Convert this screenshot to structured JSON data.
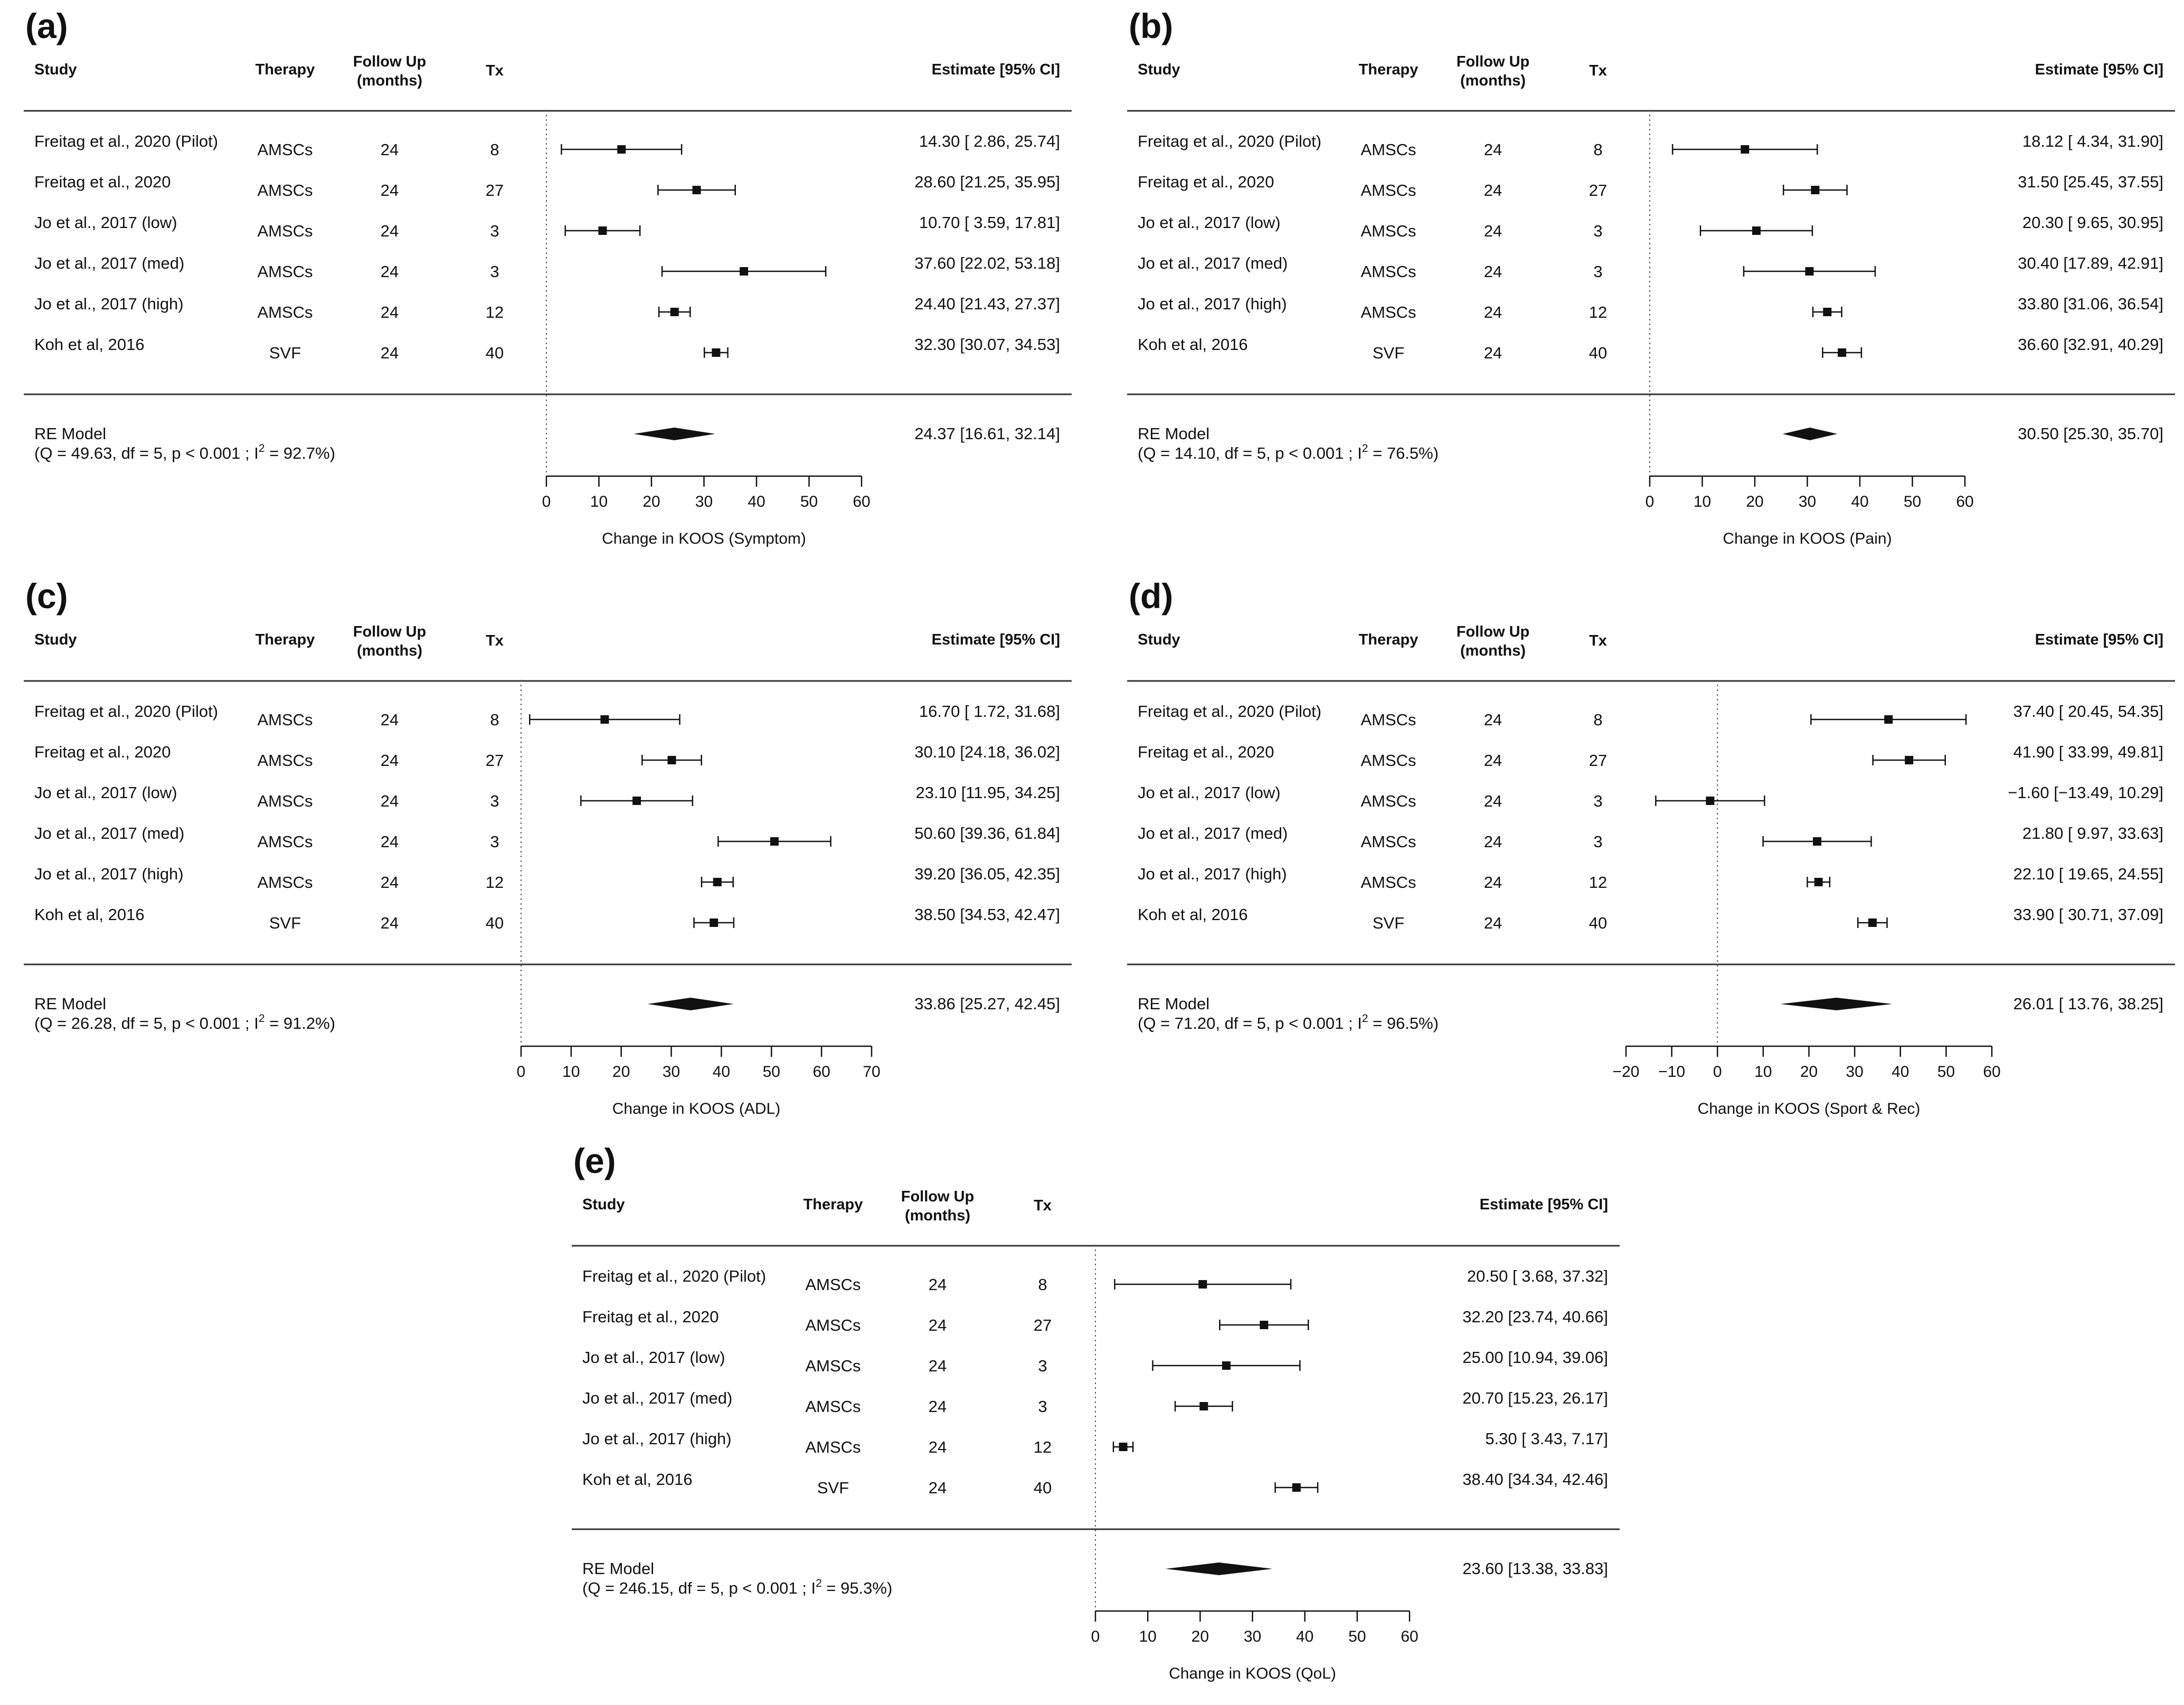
{
  "figure": {
    "headers": {
      "study": "Study",
      "therapy": "Therapy",
      "follow_up_1": "Follow Up",
      "follow_up_2": "(months)",
      "tx": "Tx",
      "estimate": "Estimate [95% CI]"
    },
    "colors": {
      "ink": "#111111",
      "rule": "#333333",
      "background": "#ffffff"
    }
  },
  "chart_data": [
    {
      "type": "forest",
      "label": "(a)",
      "xlabel": "Change in KOOS (Symptom)",
      "xlim": [
        0,
        60
      ],
      "ticks": [
        0,
        10,
        20,
        30,
        40,
        50,
        60
      ],
      "tick_labels": [
        "0",
        "10",
        "20",
        "30",
        "40",
        "50",
        "60"
      ],
      "studies": [
        {
          "name": "Freitag et al., 2020 (Pilot)",
          "therapy": "AMSCs",
          "followup": "24",
          "tx": "8",
          "est": 14.3,
          "lo": 2.86,
          "hi": 25.74,
          "ci_text": "14.30 [ 2.86, 25.74]"
        },
        {
          "name": "Freitag et al., 2020",
          "therapy": "AMSCs",
          "followup": "24",
          "tx": "27",
          "est": 28.6,
          "lo": 21.25,
          "hi": 35.95,
          "ci_text": "28.60 [21.25, 35.95]"
        },
        {
          "name": "Jo et al., 2017 (low)",
          "therapy": "AMSCs",
          "followup": "24",
          "tx": "3",
          "est": 10.7,
          "lo": 3.59,
          "hi": 17.81,
          "ci_text": "10.70 [ 3.59, 17.81]"
        },
        {
          "name": "Jo et al., 2017 (med)",
          "therapy": "AMSCs",
          "followup": "24",
          "tx": "3",
          "est": 37.6,
          "lo": 22.02,
          "hi": 53.18,
          "ci_text": "37.60 [22.02, 53.18]"
        },
        {
          "name": "Jo et al., 2017 (high)",
          "therapy": "AMSCs",
          "followup": "24",
          "tx": "12",
          "est": 24.4,
          "lo": 21.43,
          "hi": 27.37,
          "ci_text": "24.40 [21.43, 27.37]"
        },
        {
          "name": "Koh et al, 2016",
          "therapy": "SVF",
          "followup": "24",
          "tx": "40",
          "est": 32.3,
          "lo": 30.07,
          "hi": 34.53,
          "ci_text": "32.30 [30.07, 34.53]"
        }
      ],
      "model": {
        "name": "RE Model",
        "q_text": "(Q = 49.63, df = 5, p < 0.001 ; I",
        "sup": "2",
        "q_tail": " = 92.7%)",
        "est": 24.37,
        "lo": 16.61,
        "hi": 32.14,
        "ci_text": "24.37 [16.61, 32.14]"
      }
    },
    {
      "type": "forest",
      "label": "(b)",
      "xlabel": "Change in KOOS (Pain)",
      "xlim": [
        0,
        60
      ],
      "ticks": [
        0,
        10,
        20,
        30,
        40,
        50,
        60
      ],
      "tick_labels": [
        "0",
        "10",
        "20",
        "30",
        "40",
        "50",
        "60"
      ],
      "studies": [
        {
          "name": "Freitag et al., 2020 (Pilot)",
          "therapy": "AMSCs",
          "followup": "24",
          "tx": "8",
          "est": 18.12,
          "lo": 4.34,
          "hi": 31.9,
          "ci_text": "18.12 [ 4.34, 31.90]"
        },
        {
          "name": "Freitag et al., 2020",
          "therapy": "AMSCs",
          "followup": "24",
          "tx": "27",
          "est": 31.5,
          "lo": 25.45,
          "hi": 37.55,
          "ci_text": "31.50 [25.45, 37.55]"
        },
        {
          "name": "Jo et al., 2017 (low)",
          "therapy": "AMSCs",
          "followup": "24",
          "tx": "3",
          "est": 20.3,
          "lo": 9.65,
          "hi": 30.95,
          "ci_text": "20.30 [ 9.65, 30.95]"
        },
        {
          "name": "Jo et al., 2017 (med)",
          "therapy": "AMSCs",
          "followup": "24",
          "tx": "3",
          "est": 30.4,
          "lo": 17.89,
          "hi": 42.91,
          "ci_text": "30.40 [17.89, 42.91]"
        },
        {
          "name": "Jo et al., 2017 (high)",
          "therapy": "AMSCs",
          "followup": "24",
          "tx": "12",
          "est": 33.8,
          "lo": 31.06,
          "hi": 36.54,
          "ci_text": "33.80 [31.06, 36.54]"
        },
        {
          "name": "Koh et al, 2016",
          "therapy": "SVF",
          "followup": "24",
          "tx": "40",
          "est": 36.6,
          "lo": 32.91,
          "hi": 40.29,
          "ci_text": "36.60 [32.91, 40.29]"
        }
      ],
      "model": {
        "name": "RE Model",
        "q_text": "(Q = 14.10, df = 5, p < 0.001 ; I",
        "sup": "2",
        "q_tail": " = 76.5%)",
        "est": 30.5,
        "lo": 25.3,
        "hi": 35.7,
        "ci_text": "30.50 [25.30, 35.70]"
      }
    },
    {
      "type": "forest",
      "label": "(c)",
      "xlabel": "Change in KOOS (ADL)",
      "xlim": [
        0,
        70
      ],
      "ticks": [
        0,
        10,
        20,
        30,
        40,
        50,
        60,
        70
      ],
      "tick_labels": [
        "0",
        "10",
        "20",
        "30",
        "40",
        "50",
        "60",
        "70"
      ],
      "studies": [
        {
          "name": "Freitag et al., 2020 (Pilot)",
          "therapy": "AMSCs",
          "followup": "24",
          "tx": "8",
          "est": 16.7,
          "lo": 1.72,
          "hi": 31.68,
          "ci_text": "16.70 [ 1.72, 31.68]"
        },
        {
          "name": "Freitag et al., 2020",
          "therapy": "AMSCs",
          "followup": "24",
          "tx": "27",
          "est": 30.1,
          "lo": 24.18,
          "hi": 36.02,
          "ci_text": "30.10 [24.18, 36.02]"
        },
        {
          "name": "Jo et al., 2017 (low)",
          "therapy": "AMSCs",
          "followup": "24",
          "tx": "3",
          "est": 23.1,
          "lo": 11.95,
          "hi": 34.25,
          "ci_text": "23.10 [11.95, 34.25]"
        },
        {
          "name": "Jo et al., 2017 (med)",
          "therapy": "AMSCs",
          "followup": "24",
          "tx": "3",
          "est": 50.6,
          "lo": 39.36,
          "hi": 61.84,
          "ci_text": "50.60 [39.36, 61.84]"
        },
        {
          "name": "Jo et al., 2017 (high)",
          "therapy": "AMSCs",
          "followup": "24",
          "tx": "12",
          "est": 39.2,
          "lo": 36.05,
          "hi": 42.35,
          "ci_text": "39.20 [36.05, 42.35]"
        },
        {
          "name": "Koh et al, 2016",
          "therapy": "SVF",
          "followup": "24",
          "tx": "40",
          "est": 38.5,
          "lo": 34.53,
          "hi": 42.47,
          "ci_text": "38.50 [34.53, 42.47]"
        }
      ],
      "model": {
        "name": "RE Model",
        "q_text": "(Q = 26.28, df = 5, p < 0.001 ; I",
        "sup": "2",
        "q_tail": " = 91.2%)",
        "est": 33.86,
        "lo": 25.27,
        "hi": 42.45,
        "ci_text": "33.86 [25.27, 42.45]"
      }
    },
    {
      "type": "forest",
      "label": "(d)",
      "xlabel": "Change in KOOS (Sport & Rec)",
      "xlim": [
        -20,
        60
      ],
      "ticks": [
        -20,
        -10,
        0,
        10,
        20,
        30,
        40,
        50,
        60
      ],
      "tick_labels": [
        "−20",
        "−10",
        "0",
        "10",
        "20",
        "30",
        "40",
        "50",
        "60"
      ],
      "studies": [
        {
          "name": "Freitag et al., 2020 (Pilot)",
          "therapy": "AMSCs",
          "followup": "24",
          "tx": "8",
          "est": 37.4,
          "lo": 20.45,
          "hi": 54.35,
          "ci_text": "37.40 [ 20.45, 54.35]"
        },
        {
          "name": "Freitag et al., 2020",
          "therapy": "AMSCs",
          "followup": "24",
          "tx": "27",
          "est": 41.9,
          "lo": 33.99,
          "hi": 49.81,
          "ci_text": "41.90 [ 33.99, 49.81]"
        },
        {
          "name": "Jo et al., 2017 (low)",
          "therapy": "AMSCs",
          "followup": "24",
          "tx": "3",
          "est": -1.6,
          "lo": -13.49,
          "hi": 10.29,
          "ci_text": "−1.60 [−13.49, 10.29]"
        },
        {
          "name": "Jo et al., 2017 (med)",
          "therapy": "AMSCs",
          "followup": "24",
          "tx": "3",
          "est": 21.8,
          "lo": 9.97,
          "hi": 33.63,
          "ci_text": "21.80 [  9.97, 33.63]"
        },
        {
          "name": "Jo et al., 2017 (high)",
          "therapy": "AMSCs",
          "followup": "24",
          "tx": "12",
          "est": 22.1,
          "lo": 19.65,
          "hi": 24.55,
          "ci_text": "22.10 [ 19.65, 24.55]"
        },
        {
          "name": "Koh et al, 2016",
          "therapy": "SVF",
          "followup": "24",
          "tx": "40",
          "est": 33.9,
          "lo": 30.71,
          "hi": 37.09,
          "ci_text": "33.90 [ 30.71, 37.09]"
        }
      ],
      "model": {
        "name": "RE Model",
        "q_text": "(Q = 71.20, df = 5, p < 0.001 ; I",
        "sup": "2",
        "q_tail": " = 96.5%)",
        "est": 26.01,
        "lo": 13.76,
        "hi": 38.25,
        "ci_text": "26.01 [ 13.76, 38.25]"
      }
    },
    {
      "type": "forest",
      "label": "(e)",
      "xlabel": "Change in KOOS (QoL)",
      "xlim": [
        0,
        60
      ],
      "ticks": [
        0,
        10,
        20,
        30,
        40,
        50,
        60
      ],
      "tick_labels": [
        "0",
        "10",
        "20",
        "30",
        "40",
        "50",
        "60"
      ],
      "studies": [
        {
          "name": "Freitag et al., 2020 (Pilot)",
          "therapy": "AMSCs",
          "followup": "24",
          "tx": "8",
          "est": 20.5,
          "lo": 3.68,
          "hi": 37.32,
          "ci_text": "20.50 [ 3.68, 37.32]"
        },
        {
          "name": "Freitag et al., 2020",
          "therapy": "AMSCs",
          "followup": "24",
          "tx": "27",
          "est": 32.2,
          "lo": 23.74,
          "hi": 40.66,
          "ci_text": "32.20 [23.74, 40.66]"
        },
        {
          "name": "Jo et al., 2017 (low)",
          "therapy": "AMSCs",
          "followup": "24",
          "tx": "3",
          "est": 25.0,
          "lo": 10.94,
          "hi": 39.06,
          "ci_text": "25.00 [10.94, 39.06]"
        },
        {
          "name": "Jo et al., 2017 (med)",
          "therapy": "AMSCs",
          "followup": "24",
          "tx": "3",
          "est": 20.7,
          "lo": 15.23,
          "hi": 26.17,
          "ci_text": "20.70 [15.23, 26.17]"
        },
        {
          "name": "Jo et al., 2017 (high)",
          "therapy": "AMSCs",
          "followup": "24",
          "tx": "12",
          "est": 5.3,
          "lo": 3.43,
          "hi": 7.17,
          "ci_text": "5.30 [ 3.43,  7.17]"
        },
        {
          "name": "Koh et al, 2016",
          "therapy": "SVF",
          "followup": "24",
          "tx": "40",
          "est": 38.4,
          "lo": 34.34,
          "hi": 42.46,
          "ci_text": "38.40 [34.34, 42.46]"
        }
      ],
      "model": {
        "name": "RE Model",
        "q_text": "(Q = 246.15, df = 5, p < 0.001 ; I",
        "sup": "2",
        "q_tail": " = 95.3%)",
        "est": 23.6,
        "lo": 13.38,
        "hi": 33.83,
        "ci_text": "23.60 [13.38, 33.83]"
      }
    }
  ]
}
